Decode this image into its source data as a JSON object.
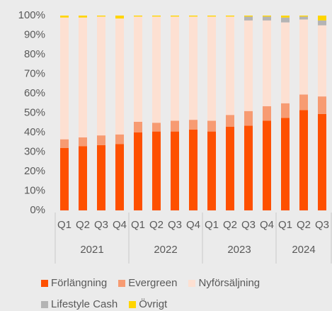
{
  "chart_data": {
    "type": "stacked_bar",
    "groups": [
      {
        "name": "2021",
        "categories": [
          "Q1",
          "Q2",
          "Q3",
          "Q4"
        ]
      },
      {
        "name": "2022",
        "categories": [
          "Q1",
          "Q2",
          "Q3",
          "Q4"
        ]
      },
      {
        "name": "2023",
        "categories": [
          "Q1",
          "Q2",
          "Q3",
          "Q4"
        ]
      },
      {
        "name": "2024",
        "categories": [
          "Q1",
          "Q2",
          "Q3"
        ]
      }
    ],
    "series": [
      {
        "name": "Förlängning",
        "color": "#fe5000",
        "values": [
          32,
          33,
          33.5,
          34,
          40,
          40.5,
          40.5,
          41.5,
          40.5,
          43,
          43.5,
          46,
          47.5,
          51.5,
          49.5
        ]
      },
      {
        "name": "Evergreen",
        "color": "#f79b72",
        "values": [
          4.5,
          4.5,
          5,
          5,
          5.5,
          4.5,
          5.5,
          5,
          5.5,
          6,
          7.5,
          7.5,
          7.5,
          8,
          9
        ]
      },
      {
        "name": "Nyförsäljning",
        "color": "#fde0d2",
        "values": [
          62.5,
          61.5,
          61,
          59.5,
          54,
          54.5,
          53.5,
          53,
          53.5,
          50.5,
          46.5,
          44,
          41.5,
          38.5,
          36.5
        ]
      },
      {
        "name": "Lifestyle Cash",
        "color": "#b4b4b4",
        "values": [
          0,
          0,
          0,
          0,
          0,
          0,
          0,
          0,
          0,
          0,
          2,
          2,
          2.5,
          1.5,
          2.5
        ]
      },
      {
        "name": "Övrigt",
        "color": "#ffd500",
        "values": [
          1,
          1,
          0.5,
          1.5,
          0.5,
          0.5,
          0.5,
          0.5,
          0.5,
          0.5,
          0.5,
          0.5,
          1,
          0.5,
          2.5
        ]
      }
    ],
    "ylim": [
      0,
      100
    ],
    "yticks": [
      {
        "value": 0,
        "label": "0%"
      },
      {
        "value": 10,
        "label": "10%"
      },
      {
        "value": 20,
        "label": "20%"
      },
      {
        "value": 30,
        "label": "30%"
      },
      {
        "value": 40,
        "label": "40%"
      },
      {
        "value": 50,
        "label": "50%"
      },
      {
        "value": 60,
        "label": "60%"
      },
      {
        "value": 70,
        "label": "70%"
      },
      {
        "value": 80,
        "label": "80%"
      },
      {
        "value": 90,
        "label": "90%"
      },
      {
        "value": 100,
        "label": "100%"
      }
    ],
    "grid": false
  }
}
